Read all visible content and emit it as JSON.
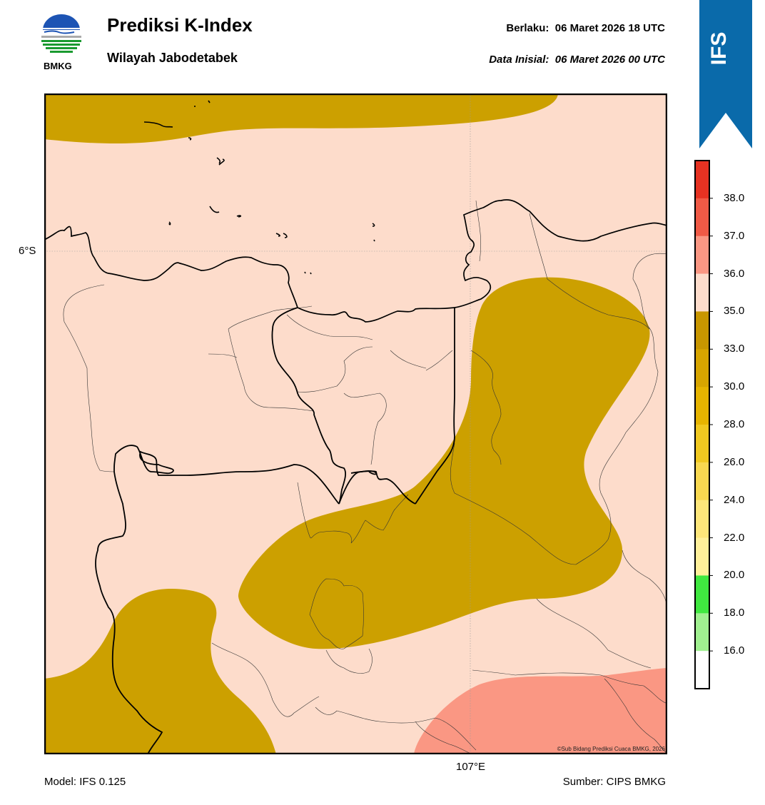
{
  "header": {
    "title": "Prediksi K-Index",
    "subtitle": "Wilayah Jabodetabek",
    "valid_label": "Berlaku:",
    "valid_value": "06 Maret 2026 18 UTC",
    "init_label": "Data Inisial:",
    "init_value": "06 Maret 2026 00 UTC"
  },
  "logo": {
    "text": "BMKG"
  },
  "ribbon": {
    "text": "IFS",
    "color": "#0a6aaa"
  },
  "map": {
    "lat_label": "6°S",
    "lon_label": "107°E",
    "credit": "©Sub Bidang Prediksi Cuaca BMKG, 2026",
    "background_class_color": "#fddccb",
    "k_index_fields": [
      {
        "range": "33.0-35.0",
        "color": "#cca000",
        "regions": [
          "north coast sea band",
          "east central plume",
          "southwest corner",
          "south-central"
        ]
      },
      {
        "range": "36.0-37.0",
        "color": "#fa9783",
        "regions": [
          "southeast corner"
        ]
      }
    ]
  },
  "colorbar": {
    "ticks": [
      "38.0",
      "37.0",
      "36.0",
      "35.0",
      "33.0",
      "30.0",
      "28.0",
      "26.0",
      "24.0",
      "22.0",
      "20.0",
      "18.0",
      "16.0"
    ],
    "colors_top_to_bottom": [
      "#e63222",
      "#f05a46",
      "#fa9783",
      "#fddccb",
      "#c89600",
      "#d7a500",
      "#e6b400",
      "#f0c820",
      "#f8d850",
      "#fde67a",
      "#fff09a",
      "#40e840",
      "#a0f090",
      "#ffffff"
    ]
  },
  "footer": {
    "model": "Model: IFS 0.125",
    "source": "Sumber: CIPS BMKG"
  }
}
